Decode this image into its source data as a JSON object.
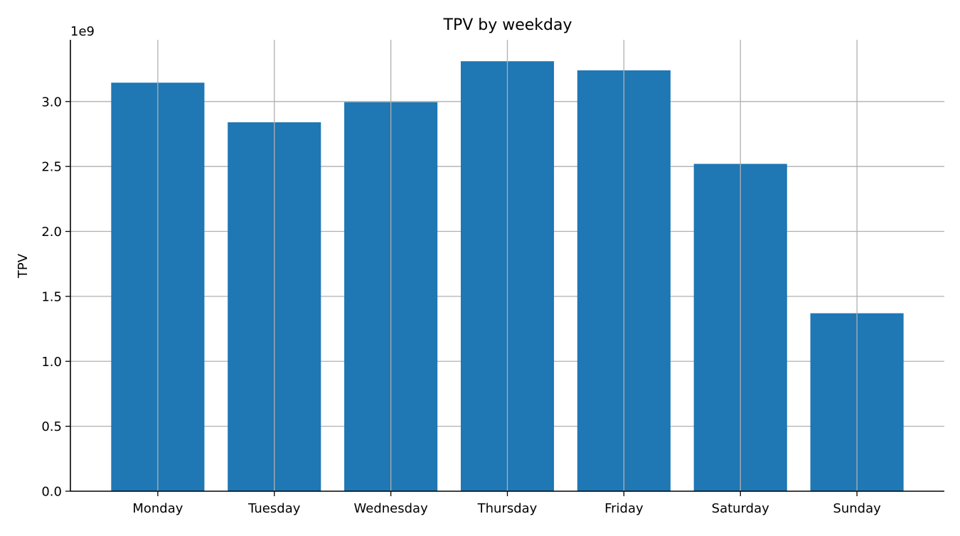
{
  "chart_data": {
    "type": "bar",
    "title": "TPV by weekday",
    "xlabel": "",
    "ylabel": "TPV",
    "y_offset_label": "1e9",
    "y_scale": 1000000000,
    "categories": [
      "Monday",
      "Tuesday",
      "Wednesday",
      "Thursday",
      "Friday",
      "Saturday",
      "Sunday"
    ],
    "values": [
      3145000000,
      2840000000,
      2995000000,
      3310000000,
      3240000000,
      2520000000,
      1370000000
    ],
    "ylim": [
      0,
      3475000000
    ],
    "yticks": [
      0,
      500000000,
      1000000000,
      1500000000,
      2000000000,
      2500000000,
      3000000000
    ],
    "ytick_labels": [
      "0.0",
      "0.5",
      "1.0",
      "1.5",
      "2.0",
      "2.5",
      "3.0"
    ],
    "grid": true,
    "legend": false,
    "colors": {
      "bar": "#1f77b4",
      "grid": "#b0b0b0",
      "axis": "#000000",
      "background": "#ffffff"
    }
  }
}
